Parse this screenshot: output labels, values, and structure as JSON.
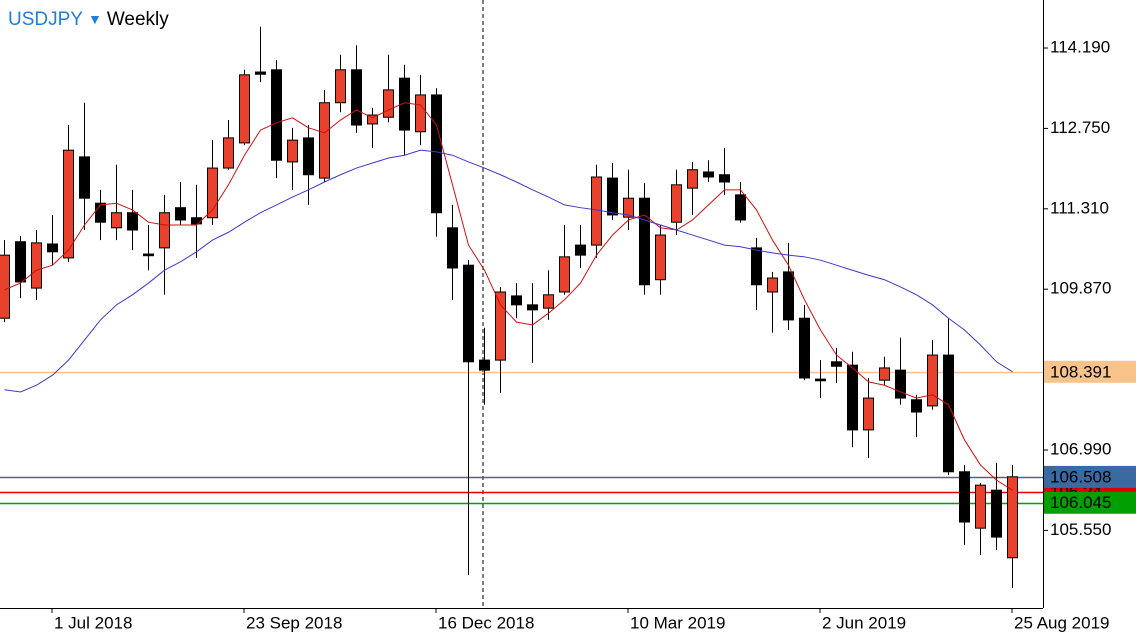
{
  "chart_data": {
    "type": "candlestick",
    "symbol": "USDJPY",
    "timeframe": "Weekly",
    "categories": [
      null,
      null,
      null,
      "1 Jul 2018",
      null,
      null,
      null,
      null,
      null,
      null,
      null,
      null,
      null,
      null,
      null,
      "23 Sep 2018",
      null,
      null,
      null,
      null,
      null,
      null,
      null,
      null,
      null,
      null,
      null,
      "16 Dec 2018",
      null,
      null,
      null,
      null,
      null,
      null,
      null,
      null,
      null,
      null,
      null,
      "10 Mar 2019",
      null,
      null,
      null,
      null,
      null,
      null,
      null,
      null,
      null,
      null,
      null,
      "2 Jun 2019",
      null,
      null,
      null,
      null,
      null,
      null,
      null,
      null,
      null,
      null,
      null,
      "25 Aug 2019"
    ],
    "open": [
      109.35,
      110.72,
      109.89,
      110.68,
      110.43,
      112.24,
      111.41,
      110.97,
      111.24,
      110.5,
      110.61,
      111.33,
      111.15,
      111.15,
      112.04,
      112.49,
      113.76,
      113.8,
      112.15,
      112.58,
      111.86,
      113.21,
      113.8,
      112.83,
      112.95,
      113.65,
      112.69,
      113.35,
      110.97,
      110.3,
      108.6,
      108.6,
      109.75,
      109.59,
      109.53,
      109.82,
      110.66,
      110.66,
      111.86,
      111.16,
      111.5,
      110.04,
      111.07,
      111.68,
      111.97,
      111.92,
      111.56,
      110.61,
      109.82,
      110.18,
      109.35,
      108.26,
      108.57,
      108.51,
      107.35,
      108.24,
      108.42,
      107.89,
      107.78,
      108.69,
      106.6,
      105.59,
      106.27,
      105.06
    ],
    "high": [
      110.75,
      110.82,
      110.93,
      111.2,
      112.81,
      113.21,
      111.65,
      112.1,
      111.65,
      111.02,
      111.56,
      111.79,
      111.74,
      112.54,
      112.9,
      113.8,
      114.57,
      113.97,
      112.76,
      112.81,
      113.44,
      114.07,
      114.24,
      113.12,
      114.07,
      113.89,
      113.71,
      113.47,
      111.38,
      110.39,
      109.18,
      109.91,
      109.98,
      109.98,
      110.21,
      111.02,
      111.02,
      112.1,
      112.13,
      112.01,
      111.77,
      111.02,
      112.01,
      112.15,
      112.18,
      112.4,
      111.79,
      110.79,
      110.18,
      110.7,
      109.59,
      108.6,
      108.82,
      108.75,
      108.28,
      108.66,
      109.0,
      107.98,
      108.96,
      109.35,
      106.72,
      106.4,
      106.76,
      106.72
    ],
    "low": [
      109.28,
      109.71,
      109.68,
      110.3,
      110.36,
      110.93,
      110.75,
      110.75,
      110.57,
      110.21,
      109.77,
      111.02,
      110.43,
      111.02,
      112.01,
      112.45,
      113.58,
      111.86,
      111.65,
      111.38,
      111.79,
      113.04,
      112.67,
      112.4,
      112.86,
      112.27,
      112.45,
      110.81,
      109.68,
      104.75,
      107.8,
      108.01,
      109.35,
      108.55,
      109.32,
      109.77,
      110.25,
      110.43,
      111.11,
      110.93,
      109.77,
      109.77,
      110.84,
      111.2,
      111.79,
      111.56,
      111.06,
      109.5,
      109.09,
      109.14,
      108.24,
      107.92,
      108.19,
      107.04,
      106.85,
      108.15,
      107.8,
      107.22,
      107.71,
      106.54,
      105.29,
      105.11,
      105.2,
      104.52
    ],
    "close": [
      110.48,
      110.0,
      110.7,
      110.54,
      112.36,
      111.5,
      111.07,
      111.24,
      110.93,
      110.47,
      111.24,
      111.11,
      111.04,
      112.04,
      112.58,
      113.71,
      113.72,
      112.18,
      112.54,
      111.92,
      113.21,
      113.8,
      112.81,
      112.99,
      113.44,
      112.72,
      113.35,
      111.24,
      110.25,
      108.57,
      108.42,
      109.82,
      109.59,
      109.5,
      109.77,
      110.45,
      110.48,
      111.88,
      111.2,
      111.5,
      109.95,
      110.84,
      111.74,
      112.01,
      111.88,
      111.79,
      111.11,
      109.95,
      110.07,
      109.32,
      108.28,
      108.23,
      108.49,
      107.35,
      107.92,
      108.46,
      107.92,
      107.67,
      108.69,
      106.6,
      105.7,
      106.36,
      105.43,
      106.51
    ],
    "up_color": "#e8412c",
    "down_color": "#000000",
    "overlays": [
      {
        "type": "line",
        "color": "#d01010",
        "values": [
          109.86,
          109.98,
          110.21,
          110.3,
          110.57,
          111.02,
          111.38,
          111.41,
          111.29,
          111.07,
          111.02,
          111.02,
          111.02,
          111.29,
          111.74,
          112.27,
          112.72,
          112.85,
          112.94,
          112.76,
          112.67,
          112.9,
          113.08,
          112.94,
          113.08,
          113.21,
          113.17,
          112.81,
          111.74,
          110.66,
          110.21,
          109.59,
          109.28,
          109.23,
          109.44,
          109.68,
          109.98,
          110.48,
          110.84,
          111.11,
          111.2,
          110.97,
          110.93,
          111.11,
          111.38,
          111.65,
          111.65,
          111.29,
          110.75,
          110.3,
          109.68,
          109.14,
          108.69,
          108.46,
          108.21,
          108.15,
          108.03,
          107.92,
          107.98,
          107.8,
          107.17,
          106.72,
          106.45,
          106.27
        ]
      },
      {
        "type": "line",
        "color": "#3a3ac8",
        "values": [
          108.07,
          108.03,
          108.15,
          108.33,
          108.6,
          108.96,
          109.32,
          109.59,
          109.77,
          109.98,
          110.21,
          110.36,
          110.54,
          110.75,
          110.89,
          111.07,
          111.24,
          111.38,
          111.52,
          111.65,
          111.79,
          111.92,
          112.04,
          112.13,
          112.22,
          112.27,
          112.36,
          112.33,
          112.27,
          112.15,
          112.04,
          111.92,
          111.79,
          111.65,
          111.52,
          111.38,
          111.33,
          111.29,
          111.24,
          111.2,
          111.11,
          111.02,
          110.93,
          110.84,
          110.75,
          110.66,
          110.63,
          110.57,
          110.52,
          110.48,
          110.45,
          110.39,
          110.3,
          110.21,
          110.12,
          110.04,
          109.91,
          109.77,
          109.59,
          109.35,
          109.14,
          108.87,
          108.57,
          108.39
        ]
      }
    ],
    "levels": [
      {
        "value": 108.391,
        "color": "#f8c48c"
      },
      {
        "value": 106.24,
        "color": "#e00000"
      },
      {
        "value": 106.508,
        "color": "#3a6aa0"
      },
      {
        "value": 106.045,
        "color": "#00a000"
      }
    ],
    "ylim": [
      104.16,
      115.05
    ],
    "yticks": [
      {
        "value": 114.19,
        "label": "114.190"
      },
      {
        "value": 112.75,
        "label": "112.750"
      },
      {
        "value": 111.31,
        "label": "111.310"
      },
      {
        "value": 109.87,
        "label": "109.870"
      },
      {
        "value": 106.99,
        "label": "106.990"
      },
      {
        "value": 105.55,
        "label": "105.550"
      }
    ]
  }
}
